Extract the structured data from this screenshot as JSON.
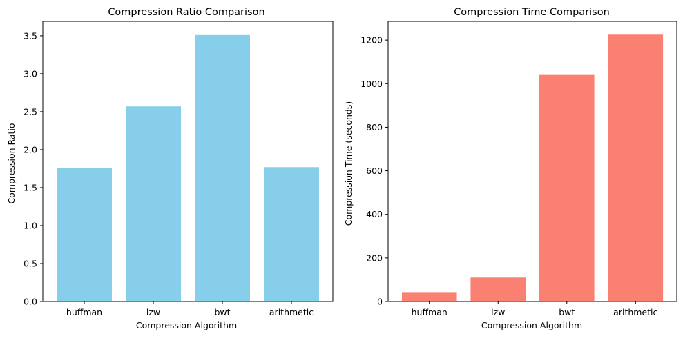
{
  "chart_data": [
    {
      "type": "bar",
      "title": "Compression Ratio Comparison",
      "xlabel": "Compression Algorithm",
      "ylabel": "Compression Ratio",
      "categories": [
        "huffman",
        "lzw",
        "bwt",
        "arithmetic"
      ],
      "values": [
        1.76,
        2.57,
        3.51,
        1.77
      ],
      "ylim": [
        0,
        3.69
      ],
      "yticks": [
        0.0,
        0.5,
        1.0,
        1.5,
        2.0,
        2.5,
        3.0,
        3.5
      ],
      "ytick_labels": [
        "0.0",
        "0.5",
        "1.0",
        "1.5",
        "2.0",
        "2.5",
        "3.0",
        "3.5"
      ],
      "color": "#87CEEB",
      "grid": false
    },
    {
      "type": "bar",
      "title": "Compression Time Comparison",
      "xlabel": "Compression Algorithm",
      "ylabel": "Compression Time (seconds)",
      "categories": [
        "huffman",
        "lzw",
        "bwt",
        "arithmetic"
      ],
      "values": [
        40,
        110,
        1040,
        1225
      ],
      "ylim": [
        0,
        1286
      ],
      "yticks": [
        0,
        200,
        400,
        600,
        800,
        1000,
        1200
      ],
      "ytick_labels": [
        "0",
        "200",
        "400",
        "600",
        "800",
        "1000",
        "1200"
      ],
      "color": "#FA8072",
      "grid": false
    }
  ]
}
